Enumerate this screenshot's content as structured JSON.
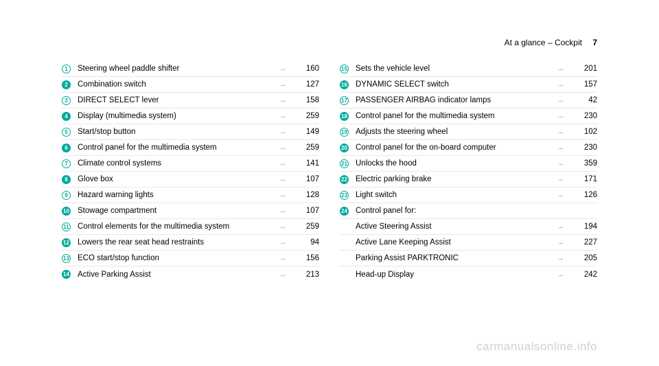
{
  "header": {
    "section": "At a glance – Cockpit",
    "page": "7"
  },
  "columns": {
    "left": [
      {
        "n": 1,
        "label": "Steering wheel paddle shifter",
        "page": "160",
        "style": "outline"
      },
      {
        "n": 2,
        "label": "Combination switch",
        "page": "127",
        "style": "fill"
      },
      {
        "n": 3,
        "label": "DIRECT SELECT lever",
        "page": "158",
        "style": "outline"
      },
      {
        "n": 4,
        "label": "Display (multimedia system)",
        "page": "259",
        "style": "fill"
      },
      {
        "n": 5,
        "label": "Start/stop button",
        "page": "149",
        "style": "outline"
      },
      {
        "n": 6,
        "label": "Control panel for the multimedia system",
        "page": "259",
        "style": "fill"
      },
      {
        "n": 7,
        "label": "Climate control systems",
        "page": "141",
        "style": "outline"
      },
      {
        "n": 8,
        "label": "Glove box",
        "page": "107",
        "style": "fill"
      },
      {
        "n": 9,
        "label": "Hazard warning lights",
        "page": "128",
        "style": "outline"
      },
      {
        "n": 10,
        "label": "Stowage compartment",
        "page": "107",
        "style": "fill"
      },
      {
        "n": 11,
        "label": "Control elements for the multimedia system",
        "page": "259",
        "style": "outline"
      },
      {
        "n": 12,
        "label": "Lowers the rear seat head restraints",
        "page": "94",
        "style": "fill"
      },
      {
        "n": 13,
        "label": "ECO start/stop function",
        "page": "156",
        "style": "outline"
      },
      {
        "n": 14,
        "label": "Active Parking Assist",
        "page": "213",
        "style": "fill"
      }
    ],
    "right": [
      {
        "n": 15,
        "label": "Sets the vehicle level",
        "page": "201",
        "style": "outline"
      },
      {
        "n": 16,
        "label": "DYNAMIC SELECT switch",
        "page": "157",
        "style": "fill"
      },
      {
        "n": 17,
        "label": "PASSENGER AIRBAG indicator lamps",
        "page": "42",
        "style": "outline"
      },
      {
        "n": 18,
        "label": "Control panel for the multimedia system",
        "page": "230",
        "style": "fill"
      },
      {
        "n": 19,
        "label": "Adjusts the steering wheel",
        "page": "102",
        "style": "outline"
      },
      {
        "n": 20,
        "label": "Control panel for the on-board computer",
        "page": "230",
        "style": "fill"
      },
      {
        "n": 21,
        "label": "Unlocks the hood",
        "page": "359",
        "style": "outline"
      },
      {
        "n": 22,
        "label": "Electric parking brake",
        "page": "171",
        "style": "fill"
      },
      {
        "n": 23,
        "label": "Light switch",
        "page": "126",
        "style": "outline"
      },
      {
        "n": 24,
        "label": "Control panel for:",
        "page": "",
        "style": "fill",
        "noArrow": true
      },
      {
        "n": null,
        "label": "Active Steering Assist",
        "page": "194"
      },
      {
        "n": null,
        "label": "Active Lane Keeping Assist",
        "page": "227"
      },
      {
        "n": null,
        "label": "Parking Assist PARKTRONIC",
        "page": "205"
      },
      {
        "n": null,
        "label": "Head-up Display",
        "page": "242"
      }
    ]
  },
  "arrow": "→",
  "watermark": "carmanualsonline.info",
  "colors": {
    "accent": "#00a99d",
    "divider": "#e8e8e8",
    "arrow": "#999999",
    "watermark": "#d0d0d0"
  }
}
